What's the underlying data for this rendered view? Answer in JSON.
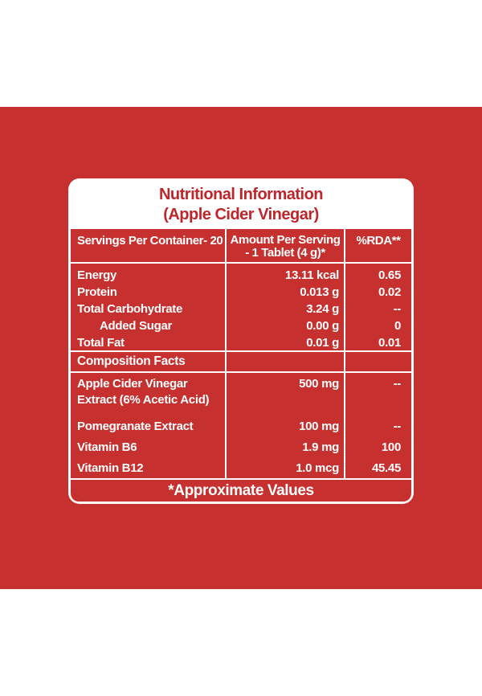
{
  "colors": {
    "brand_red": "#C6302E",
    "title_red": "#BE262B",
    "grid_white": "#FFFFFF"
  },
  "label": {
    "title_line1": "Nutritional Information",
    "title_line2": "(Apple Cider Vinegar)",
    "header": {
      "servings": "Servings Per Container- 20",
      "amount_line1": "Amount Per Serving",
      "amount_line2": "-  1 Tablet (4 g)*",
      "rda": "%RDA**"
    },
    "nutrition": {
      "rows": [
        {
          "label": "Energy",
          "amount": "13.11 kcal",
          "rda": "0.65"
        },
        {
          "label": "Protein",
          "amount": "0.013 g",
          "rda": "0.02"
        },
        {
          "label": "Total Carbohydrate",
          "amount": "3.24 g",
          "rda": "--"
        },
        {
          "label": "Added Sugar",
          "amount": "0.00 g",
          "rda": "0"
        },
        {
          "label": "Total Fat",
          "amount": "0.01 g",
          "rda": "0.01"
        }
      ]
    },
    "composition": {
      "heading": "Composition Facts",
      "rows": [
        {
          "name_line1": "Apple Cider Vinegar",
          "name_line2": "Extract (6% Acetic Acid)",
          "amount": "500 mg",
          "rda": "--"
        },
        {
          "name_line1": "Pomegranate Extract",
          "name_line2": "",
          "amount": "100 mg",
          "rda": "--"
        },
        {
          "name_line1": "Vitamin B6",
          "name_line2": "",
          "amount": "1.9 mg",
          "rda": "100"
        },
        {
          "name_line1": "Vitamin B12",
          "name_line2": "",
          "amount": "1.0 mcg",
          "rda": "45.45"
        }
      ]
    },
    "footer_note": "*Approximate Values"
  }
}
